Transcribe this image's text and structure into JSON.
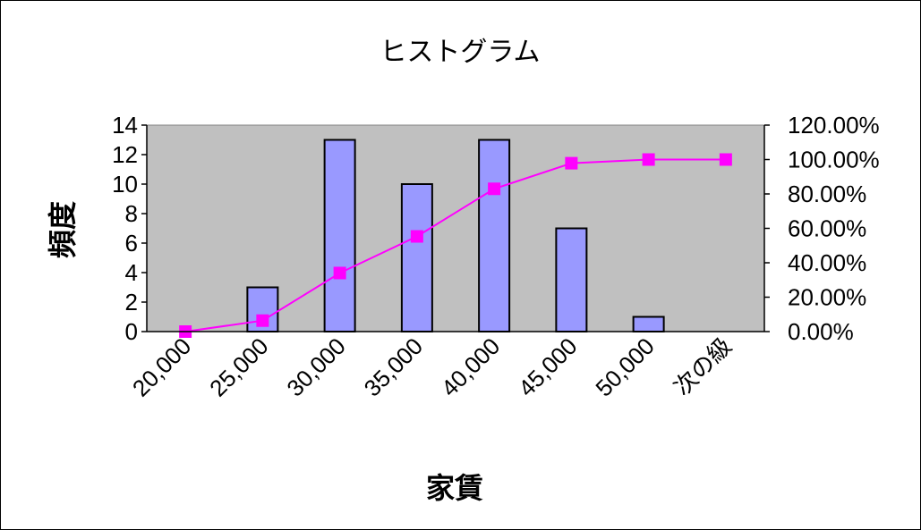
{
  "chart_data": {
    "type": "bar",
    "title": "ヒストグラム",
    "xlabel": "家賃",
    "ylabel": "頻度",
    "categories": [
      "20,000",
      "25,000",
      "30,000",
      "35,000",
      "40,000",
      "45,000",
      "50,000",
      "次の級"
    ],
    "series": [
      {
        "type": "bar",
        "values": [
          0,
          3,
          13,
          10,
          13,
          7,
          1,
          0
        ],
        "color": "#9999ff"
      },
      {
        "type": "line",
        "axis": "secondary",
        "values": [
          0.0,
          0.0638,
          0.3404,
          0.5532,
          0.8298,
          0.9787,
          1.0,
          1.0
        ],
        "color": "#ff00ff"
      }
    ],
    "ylim": [
      0,
      14
    ],
    "yticks": [
      "0",
      "2",
      "4",
      "6",
      "8",
      "10",
      "12",
      "14"
    ],
    "y2lim": [
      0,
      1.2
    ],
    "y2ticks": [
      "0.00%",
      "20.00%",
      "40.00%",
      "60.00%",
      "80.00%",
      "100.00%",
      "120.00%"
    ],
    "plot_background": "#c0c0c0",
    "grid": false,
    "legend": "none"
  }
}
